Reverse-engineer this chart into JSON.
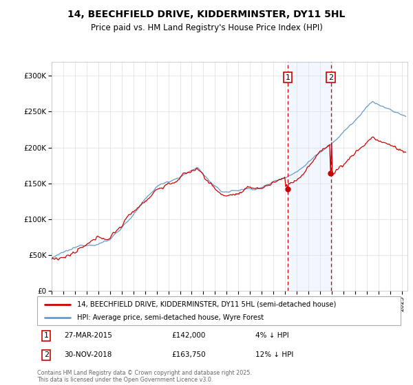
{
  "title": "14, BEECHFIELD DRIVE, KIDDERMINSTER, DY11 5HL",
  "subtitle": "Price paid vs. HM Land Registry's House Price Index (HPI)",
  "ylim": [
    0,
    320000
  ],
  "yticks": [
    0,
    50000,
    100000,
    150000,
    200000,
    250000,
    300000
  ],
  "ytick_labels": [
    "£0",
    "£50K",
    "£100K",
    "£150K",
    "£200K",
    "£250K",
    "£300K"
  ],
  "line_red_color": "#cc0000",
  "line_blue_color": "#6699cc",
  "shaded_color": "#ddeeff",
  "vline_color": "#cc0000",
  "dot_color": "#cc0000",
  "legend_line1": "14, BEECHFIELD DRIVE, KIDDERMINSTER, DY11 5HL (semi-detached house)",
  "legend_line2": "HPI: Average price, semi-detached house, Wyre Forest",
  "annotation1_date": "27-MAR-2015",
  "annotation1_price": "£142,000",
  "annotation1_hpi": "4% ↓ HPI",
  "annotation2_date": "30-NOV-2018",
  "annotation2_price": "£163,750",
  "annotation2_hpi": "12% ↓ HPI",
  "footer": "Contains HM Land Registry data © Crown copyright and database right 2025.\nThis data is licensed under the Open Government Licence v3.0.",
  "sale1_year": 2015.23,
  "sale2_year": 2018.92,
  "sale1_price": 142000,
  "sale2_price": 163750
}
